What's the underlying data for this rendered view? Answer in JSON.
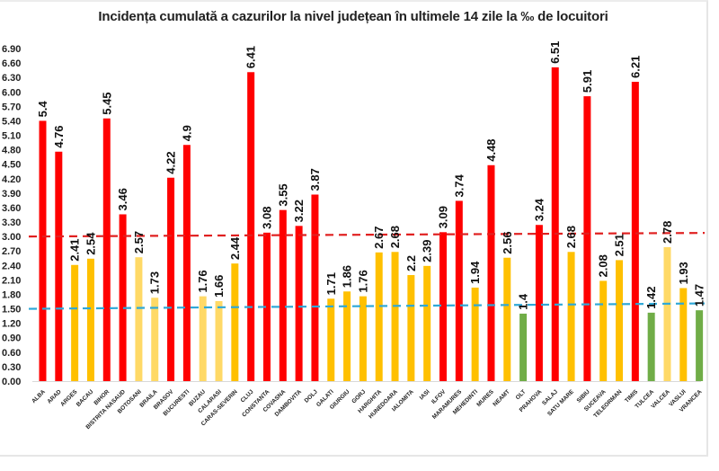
{
  "chart_data": {
    "type": "bar",
    "title": "Incidența cumulată a cazurilor la nivel județean în ultimele 14 zile la ‰ de locuitori",
    "xlabel": "",
    "ylabel": "",
    "ylim": [
      0,
      6.9
    ],
    "yticks": [
      "0.00",
      "0.30",
      "0.60",
      "0.90",
      "1.20",
      "1.50",
      "1.80",
      "2.10",
      "2.40",
      "2.70",
      "3.00",
      "3.30",
      "3.60",
      "3.90",
      "4.20",
      "4.50",
      "4.80",
      "5.10",
      "5.40",
      "5.70",
      "6.00",
      "6.30",
      "6.60",
      "6.90"
    ],
    "ytick_values": [
      0,
      0.3,
      0.6,
      0.9,
      1.2,
      1.5,
      1.8,
      2.1,
      2.4,
      2.7,
      3.0,
      3.3,
      3.6,
      3.9,
      4.2,
      4.5,
      4.8,
      5.1,
      5.4,
      5.7,
      6.0,
      6.3,
      6.6,
      6.9
    ],
    "grid": false,
    "categories": [
      "ALBA",
      "ARAD",
      "ARGES",
      "BACAU",
      "BIHOR",
      "BISTRITA NASAUD",
      "BOTOSANI",
      "BRAILA",
      "BRASOV",
      "BUCURESTI",
      "BUZAU",
      "CALARASI",
      "CARAS-SEVERIN",
      "CLUJ",
      "CONSTANTA",
      "COVASNA",
      "DAMBOVITA",
      "DOLJ",
      "GALATI",
      "GIURGIU",
      "GORJ",
      "HARGHITA",
      "HUNEDOARA",
      "IALOMITA",
      "IASI",
      "ILFOV",
      "MARAMURES",
      "MEHEDINTI",
      "MURES",
      "NEAMT",
      "OLT",
      "PRAHOVA",
      "SALAJ",
      "SATU MARE",
      "SIBIU",
      "SUCEAVA",
      "TELEORMAN",
      "TIMIS",
      "TULCEA",
      "VALCEA",
      "VASLUI",
      "VRANCEA"
    ],
    "values": [
      5.4,
      4.76,
      2.41,
      2.54,
      5.45,
      3.46,
      2.57,
      1.73,
      4.22,
      4.9,
      1.76,
      1.66,
      2.44,
      6.41,
      3.08,
      3.55,
      3.22,
      3.87,
      1.71,
      1.86,
      1.76,
      2.67,
      2.68,
      2.2,
      2.39,
      3.09,
      3.74,
      1.94,
      4.48,
      2.56,
      1.4,
      3.24,
      6.51,
      2.68,
      5.91,
      2.08,
      2.51,
      6.21,
      1.42,
      2.78,
      1.93,
      1.47
    ],
    "data_labels": [
      "5.4",
      "4.76",
      "2.41",
      "2.54",
      "5.45",
      "3.46",
      "2.57",
      "1.73",
      "4.22",
      "4.9",
      "1.76",
      "1.66",
      "2.44",
      "6.41",
      "3.08",
      "3.55",
      "3.22",
      "3.87",
      "1.71",
      "1.86",
      "1.76",
      "2.67",
      "2.68",
      "2.2",
      "2.39",
      "3.09",
      "3.74",
      "1.94",
      "4.48",
      "2.56",
      "1.4",
      "3.24",
      "6.51",
      "2.68",
      "5.91",
      "2.08",
      "2.51",
      "6.21",
      "1.42",
      "2.78",
      "1.93",
      "1.47"
    ],
    "bar_colors": [
      "red",
      "red",
      "yellow",
      "yellow",
      "red",
      "red",
      "light-yellow",
      "light-yellow",
      "red",
      "red",
      "light-yellow",
      "light-yellow",
      "yellow",
      "red",
      "red",
      "red",
      "red",
      "red",
      "yellow",
      "yellow",
      "yellow",
      "yellow",
      "yellow",
      "yellow",
      "yellow",
      "red",
      "red",
      "yellow",
      "red",
      "yellow",
      "green",
      "red",
      "red",
      "yellow",
      "red",
      "yellow",
      "yellow",
      "red",
      "green",
      "light-yellow",
      "yellow",
      "green"
    ],
    "palette": {
      "red": "#ff0000",
      "yellow": "#ffc000",
      "light-yellow": "#ffd966",
      "green": "#70ad47"
    },
    "reference_lines": [
      {
        "name": "threshold-3",
        "value": 3.0,
        "color": "#e02020",
        "style": "dashed"
      },
      {
        "name": "threshold-1.5",
        "value": 1.5,
        "color": "#2ea8d8",
        "style": "dashed"
      }
    ],
    "legend": "none"
  }
}
